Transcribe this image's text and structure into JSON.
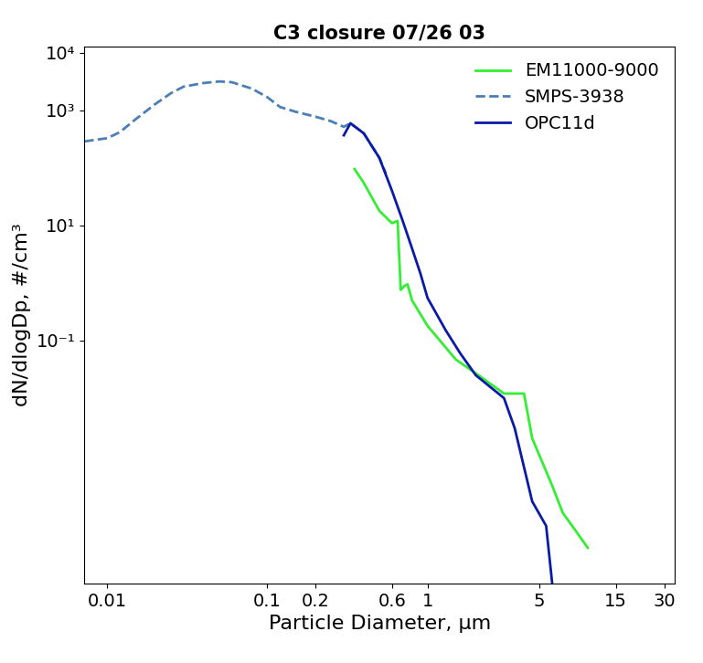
{
  "chart_data": {
    "type": "line",
    "title": "C3 closure 07/26 03",
    "x_label": "Particle Diameter, μm",
    "y_label": "dN/dlogDp, #/cm³",
    "log": true,
    "legend": "upper right",
    "xlim": [
      0.0072,
      35
    ],
    "ylim": [
      6e-06,
      13000
    ],
    "xticks": [
      0.01,
      0.1,
      0.2,
      0.6,
      1,
      5,
      15,
      30
    ],
    "yticks": [
      {
        "value": 0.1,
        "label": "10⁻¹"
      },
      {
        "value": 10,
        "label": "10¹"
      },
      {
        "value": 1000,
        "label": "10³"
      },
      {
        "value": 10000,
        "label": "10⁴"
      }
    ],
    "series": [
      {
        "name": "EM11000-9000",
        "color": "#33ee33",
        "line_style": "solid",
        "x": [
          0.35,
          0.4,
          0.5,
          0.6,
          0.65,
          0.68,
          0.72,
          0.75,
          0.8,
          1.0,
          1.5,
          2.0,
          3.0,
          4.0,
          4.5,
          6.0,
          7.0,
          8.0,
          10.0
        ],
        "values": [
          96,
          55,
          18,
          11,
          12,
          0.76,
          0.9,
          0.95,
          0.5,
          0.18,
          0.047,
          0.027,
          0.012,
          0.012,
          0.002,
          0.0003,
          0.0001,
          6e-05,
          2.5e-05
        ]
      },
      {
        "name": "SMPS-3938",
        "color": "#4a7fb5",
        "line_style": "dashed",
        "x": [
          0.0072,
          0.01,
          0.012,
          0.015,
          0.02,
          0.025,
          0.03,
          0.04,
          0.05,
          0.06,
          0.08,
          0.1,
          0.12,
          0.15,
          0.2,
          0.25,
          0.3,
          0.33,
          0.4,
          0.5,
          0.55
        ],
        "values": [
          290,
          330,
          420,
          700,
          1300,
          2000,
          2600,
          3000,
          3200,
          3100,
          2400,
          1700,
          1150,
          950,
          780,
          650,
          520,
          600,
          400,
          150,
          80
        ]
      },
      {
        "name": "OPC11d",
        "color": "#0a1aa8",
        "line_style": "solid",
        "x": [
          0.3,
          0.33,
          0.4,
          0.5,
          0.6,
          0.7,
          0.8,
          0.9,
          1.0,
          1.3,
          1.6,
          2.0,
          3.0,
          3.5,
          4.5,
          5.5,
          6.0
        ],
        "values": [
          370,
          600,
          400,
          150,
          40,
          12,
          4,
          1.5,
          0.55,
          0.15,
          0.06,
          0.025,
          0.01,
          0.003,
          0.00016,
          6e-05,
          6e-06
        ]
      }
    ]
  }
}
